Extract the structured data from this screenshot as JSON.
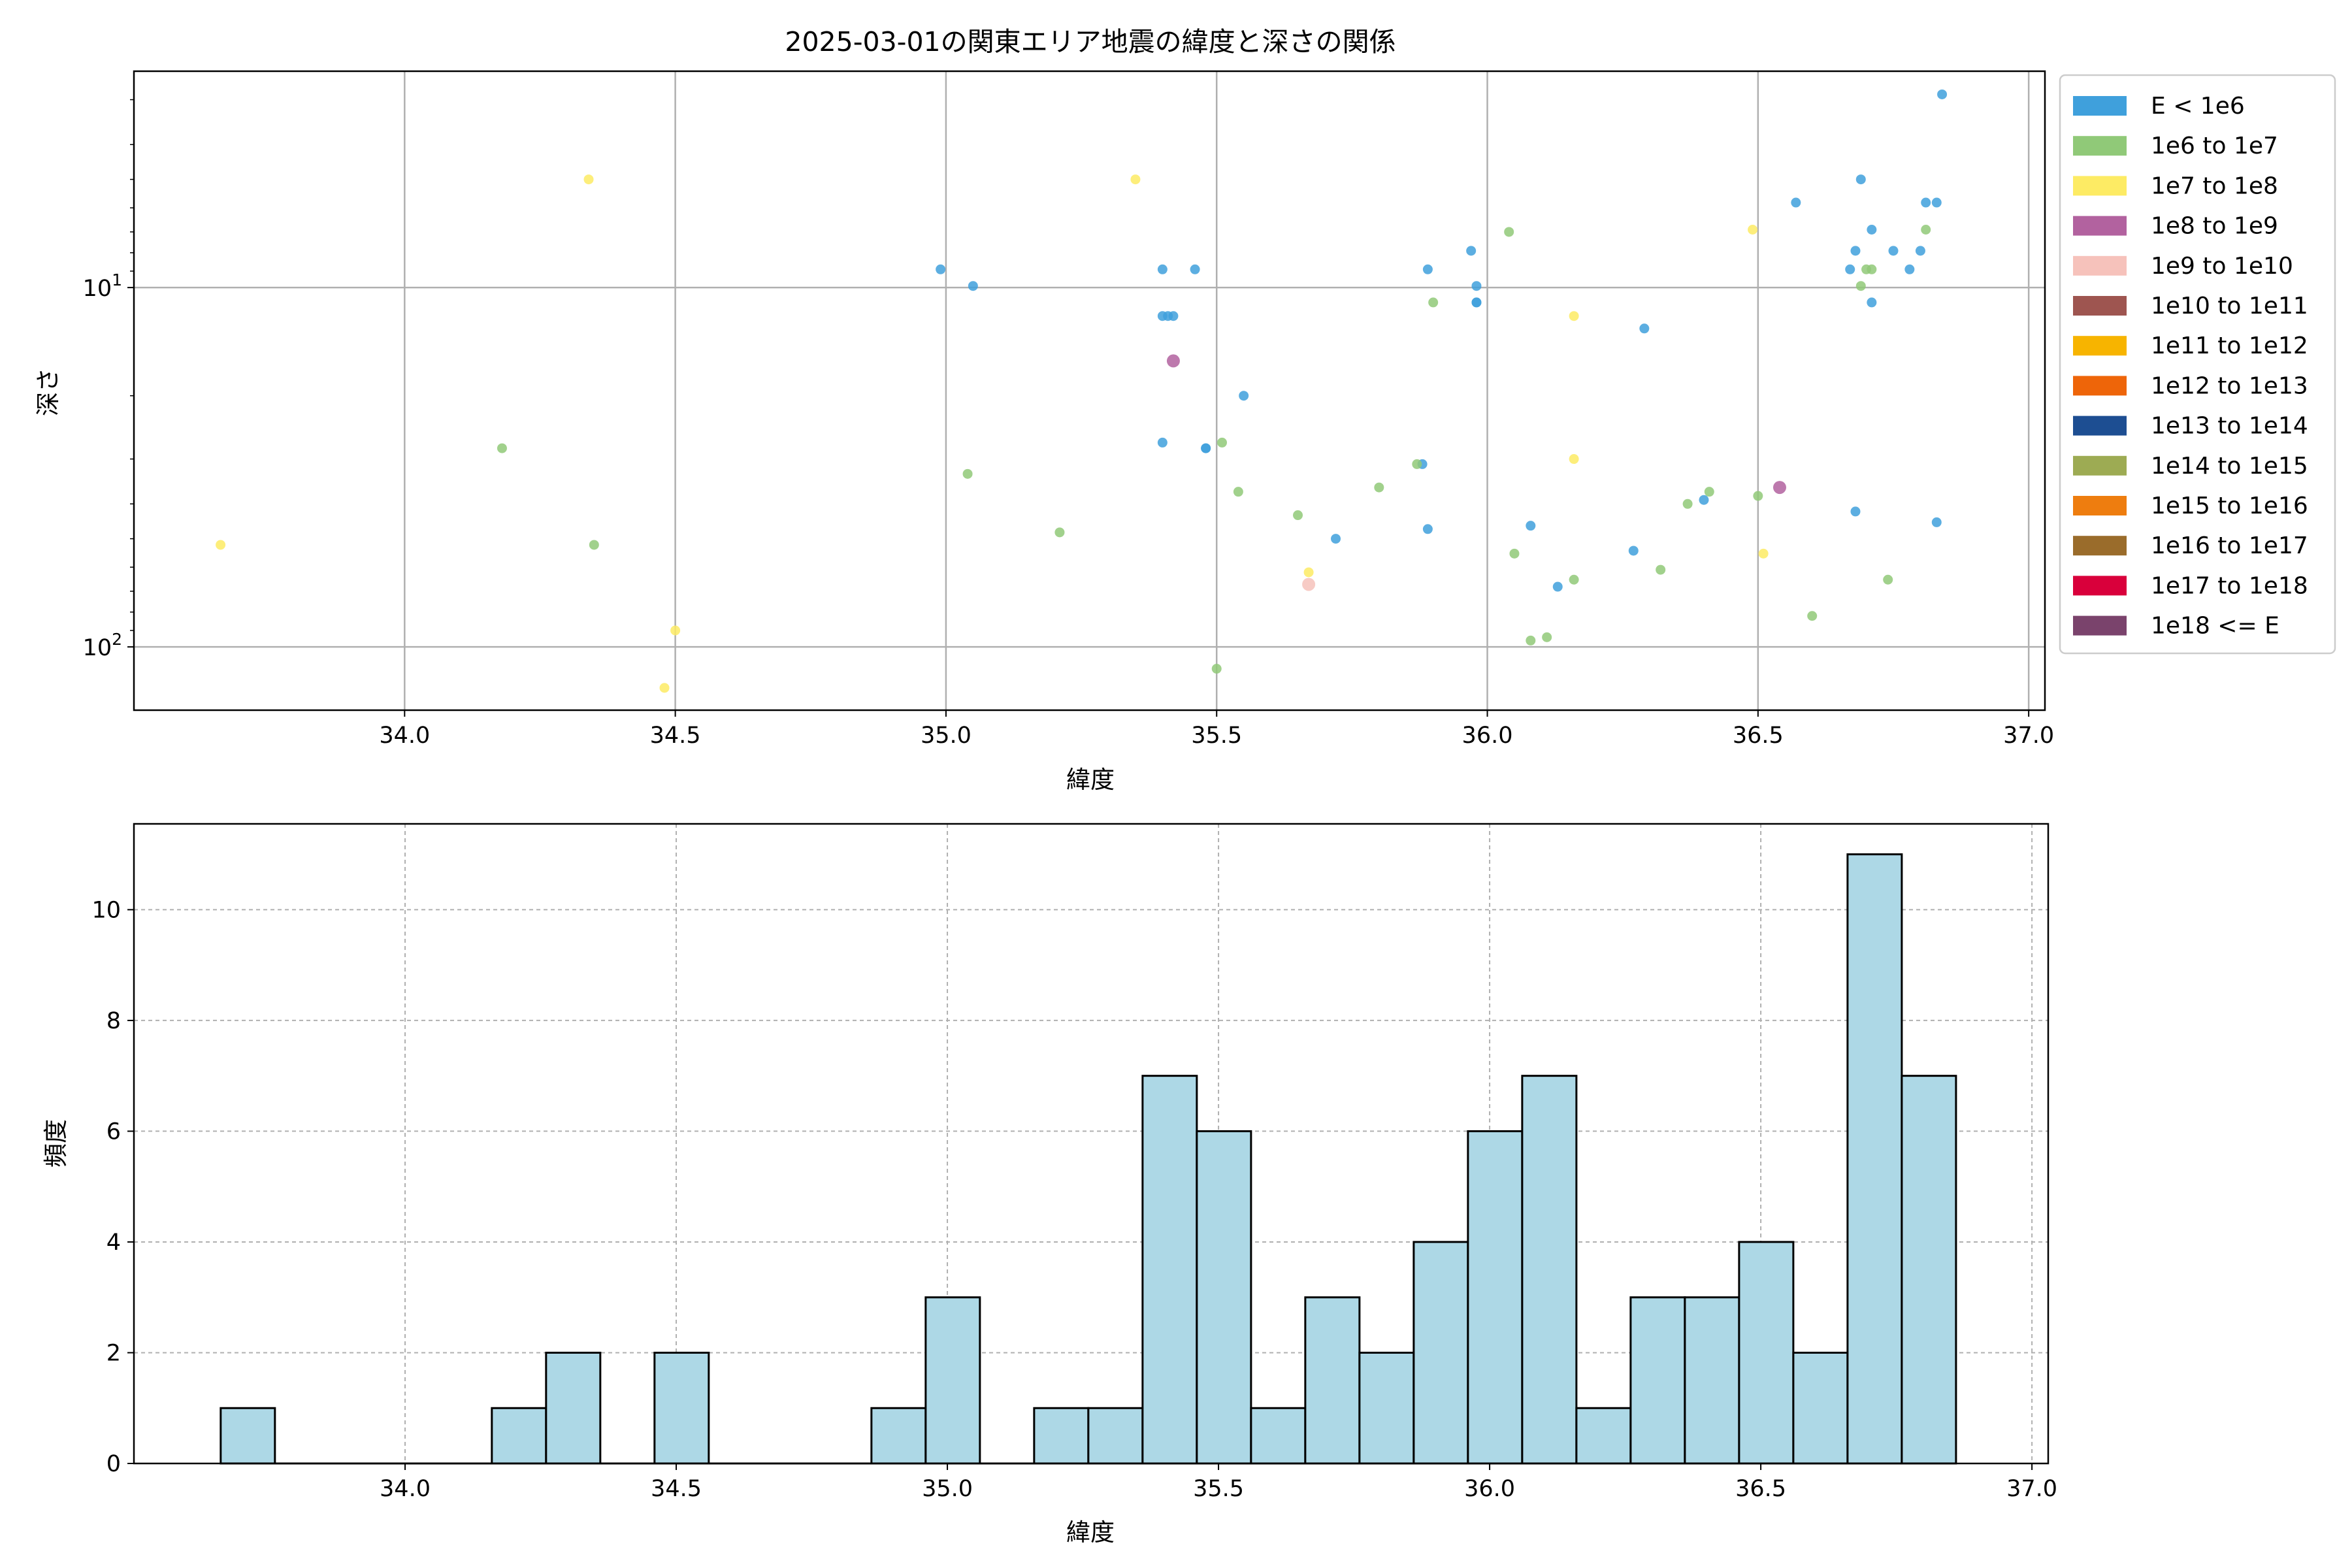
{
  "chart_data": [
    {
      "type": "scatter",
      "title": "2025-03-01の関東エリア地震の緯度と深さの関係",
      "xlabel": "緯度",
      "ylabel": "深さ",
      "xlim": [
        33.5,
        37.03
      ],
      "ylim": [
        150,
        2.5
      ],
      "y_scale": "log",
      "y_inverted": true,
      "grid": true,
      "x_ticks": [
        "34.0",
        "34.5",
        "35.0",
        "35.5",
        "36.0",
        "36.5",
        "37.0"
      ],
      "x_tick_values": [
        34.0,
        34.5,
        35.0,
        35.5,
        36.0,
        36.5,
        37.0
      ],
      "y_ticks": [
        {
          "value": 10,
          "base": "10",
          "exp": "1"
        },
        {
          "value": 100,
          "base": "10",
          "exp": "2"
        }
      ],
      "legend_position": "outside-right",
      "legend": [
        {
          "label": "E < 1e6",
          "color": "#3fa0dc"
        },
        {
          "label": "1e6 to 1e7",
          "color": "#90c978"
        },
        {
          "label": "1e7 to 1e8",
          "color": "#fdeb64"
        },
        {
          "label": "1e8 to 1e9",
          "color": "#b2629f"
        },
        {
          "label": "1e9 to 1e10",
          "color": "#f6c2bb"
        },
        {
          "label": "1e10 to 1e11",
          "color": "#9e5550"
        },
        {
          "label": "1e11 to 1e12",
          "color": "#f7b400"
        },
        {
          "label": "1e12 to 1e13",
          "color": "#ee6509"
        },
        {
          "label": "1e13 to 1e14",
          "color": "#1d4e92"
        },
        {
          "label": "1e14 to 1e15",
          "color": "#9dab53"
        },
        {
          "label": "1e15 to 1e16",
          "color": "#ee7d0f"
        },
        {
          "label": "1e16 to 1e17",
          "color": "#9a6c2b"
        },
        {
          "label": "1e17 to 1e18",
          "color": "#d9003b"
        },
        {
          "label": "1e18 <= E",
          "color": "#7a436c"
        }
      ],
      "series": [
        {
          "name": "E < 1e6",
          "color": "#3fa0dc",
          "points": [
            [
              34.99,
              8.9
            ],
            [
              35.05,
              9.9
            ],
            [
              35.4,
              8.9
            ],
            [
              35.46,
              8.9
            ],
            [
              35.4,
              12
            ],
            [
              35.42,
              12
            ],
            [
              35.41,
              12
            ],
            [
              35.55,
              20
            ],
            [
              35.4,
              27
            ],
            [
              35.48,
              28
            ],
            [
              35.48,
              28
            ],
            [
              35.72,
              50
            ],
            [
              35.88,
              31
            ],
            [
              35.89,
              47
            ],
            [
              35.89,
              8.9
            ],
            [
              35.97,
              7.9
            ],
            [
              35.98,
              9.9
            ],
            [
              35.98,
              11
            ],
            [
              35.98,
              11
            ],
            [
              36.08,
              46
            ],
            [
              36.13,
              68
            ],
            [
              36.27,
              54
            ],
            [
              36.29,
              13
            ],
            [
              36.4,
              39
            ],
            [
              36.57,
              5.8
            ],
            [
              36.67,
              8.9
            ],
            [
              36.68,
              7.9
            ],
            [
              36.69,
              5
            ],
            [
              36.71,
              6.9
            ],
            [
              36.71,
              11
            ],
            [
              36.68,
              42
            ],
            [
              36.75,
              7.9
            ],
            [
              36.78,
              8.9
            ],
            [
              36.8,
              7.9
            ],
            [
              36.81,
              5.8
            ],
            [
              36.83,
              5.8
            ],
            [
              36.84,
              2.9
            ],
            [
              36.83,
              45
            ]
          ]
        },
        {
          "name": "1e6 to 1e7",
          "color": "#90c978",
          "points": [
            [
              34.18,
              28
            ],
            [
              34.35,
              52
            ],
            [
              35.04,
              33
            ],
            [
              35.21,
              48
            ],
            [
              35.51,
              27
            ],
            [
              35.54,
              37
            ],
            [
              35.5,
              115
            ],
            [
              35.65,
              43
            ],
            [
              35.8,
              36
            ],
            [
              35.87,
              31
            ],
            [
              35.9,
              11
            ],
            [
              36.04,
              7
            ],
            [
              36.05,
              55
            ],
            [
              36.08,
              96
            ],
            [
              36.11,
              94
            ],
            [
              36.16,
              65
            ],
            [
              36.32,
              61
            ],
            [
              36.37,
              40
            ],
            [
              36.41,
              37
            ],
            [
              36.5,
              38
            ],
            [
              36.6,
              82
            ],
            [
              36.69,
              9.9
            ],
            [
              36.7,
              8.9
            ],
            [
              36.71,
              8.9
            ],
            [
              36.74,
              65
            ],
            [
              36.81,
              6.9
            ]
          ]
        },
        {
          "name": "1e7 to 1e8",
          "color": "#fdeb64",
          "points": [
            [
              33.66,
              52
            ],
            [
              34.34,
              5
            ],
            [
              34.48,
              130
            ],
            [
              34.5,
              90
            ],
            [
              35.35,
              5
            ],
            [
              35.67,
              62
            ],
            [
              36.16,
              12
            ],
            [
              36.16,
              30
            ],
            [
              36.49,
              6.9
            ],
            [
              36.51,
              55
            ]
          ]
        },
        {
          "name": "1e8 to 1e9",
          "color": "#b2629f",
          "points": [
            [
              35.42,
              16
            ],
            [
              36.54,
              36
            ]
          ]
        },
        {
          "name": "1e9 to 1e10",
          "color": "#f6c2bb",
          "points": [
            [
              35.67,
              67
            ]
          ]
        }
      ]
    },
    {
      "type": "histogram",
      "xlabel": "緯度",
      "ylabel": "頻度",
      "xlim": [
        33.5,
        37.03
      ],
      "ylim": [
        0,
        11.55
      ],
      "grid": true,
      "x_ticks": [
        "34.0",
        "34.5",
        "35.0",
        "35.5",
        "36.0",
        "36.5",
        "37.0"
      ],
      "x_tick_values": [
        34.0,
        34.5,
        35.0,
        35.5,
        36.0,
        36.5,
        37.0
      ],
      "y_ticks": [
        "0",
        "2",
        "4",
        "6",
        "8",
        "10"
      ],
      "y_tick_values": [
        0,
        2,
        4,
        6,
        8,
        10
      ],
      "bar_color": "#add8e6",
      "edge_color": "#000000",
      "bins": {
        "start": 33.66,
        "width": 0.1,
        "counts": [
          1,
          0,
          0,
          0,
          0,
          1,
          2,
          0,
          2,
          0,
          0,
          0,
          1,
          3,
          0,
          1,
          1,
          7,
          6,
          1,
          3,
          2,
          4,
          6,
          7,
          1,
          3,
          3,
          4,
          2,
          11,
          7
        ]
      }
    }
  ]
}
